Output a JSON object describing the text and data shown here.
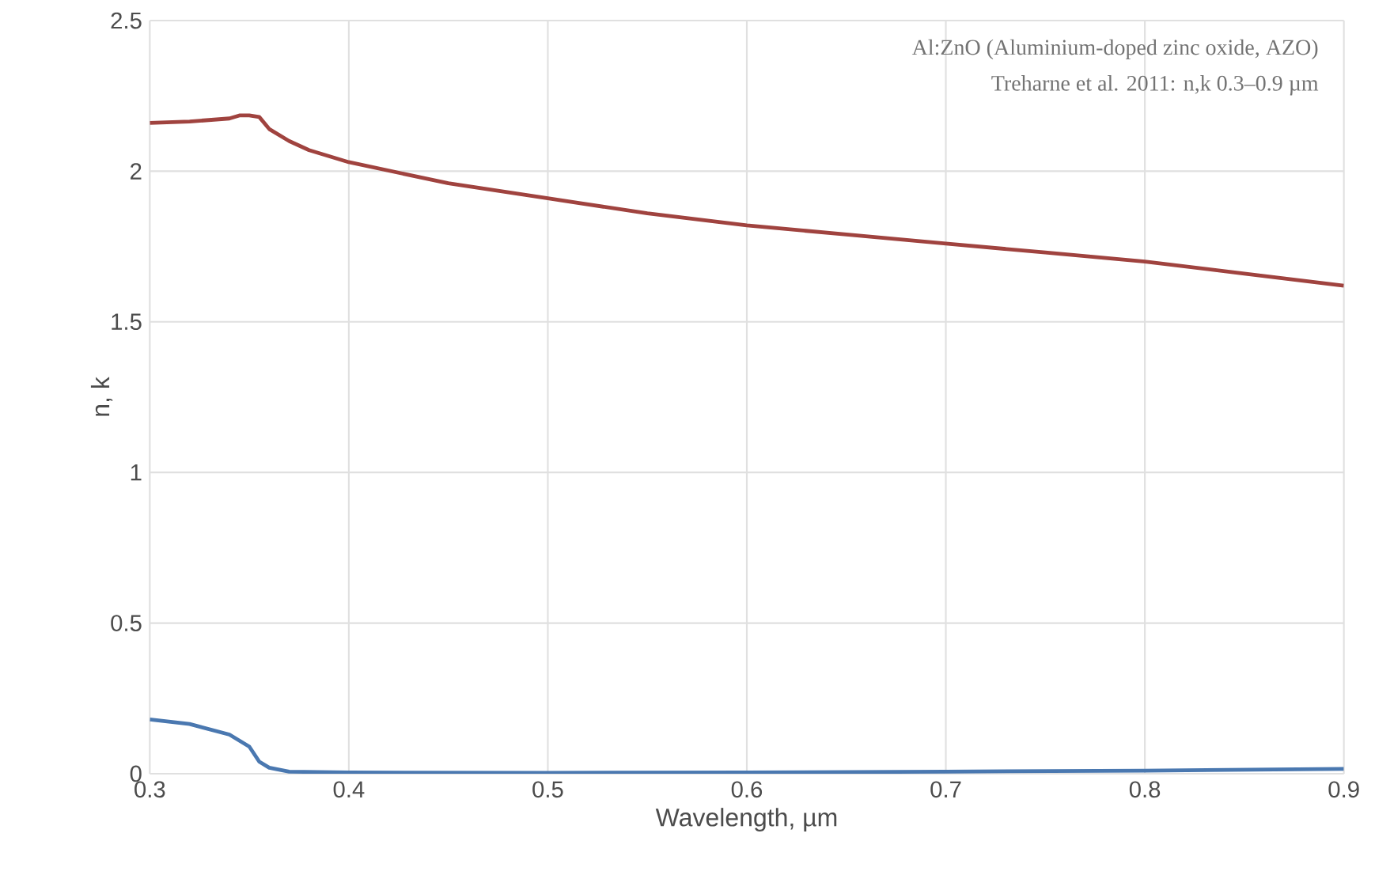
{
  "chart_data": {
    "type": "line",
    "xlabel": "Wavelength, µm",
    "ylabel": "n, k",
    "annotations": [
      "Al:ZnO (Aluminium-doped zinc oxide, AZO)",
      "Treharne et al. 2011: n,k 0.3–0.9 µm"
    ],
    "series": [
      {
        "color": "#a0433f",
        "x": [
          0.3,
          0.32,
          0.34,
          0.345,
          0.35,
          0.355,
          0.36,
          0.37,
          0.38,
          0.4,
          0.45,
          0.5,
          0.55,
          0.6,
          0.65,
          0.7,
          0.75,
          0.8,
          0.85,
          0.9
        ],
        "values": [
          2.16,
          2.165,
          2.175,
          2.185,
          2.185,
          2.18,
          2.14,
          2.1,
          2.07,
          2.03,
          1.96,
          1.91,
          1.86,
          1.82,
          1.79,
          1.76,
          1.73,
          1.7,
          1.66,
          1.62
        ]
      },
      {
        "color": "#4a78b0",
        "x": [
          0.3,
          0.32,
          0.34,
          0.35,
          0.355,
          0.36,
          0.37,
          0.4,
          0.5,
          0.6,
          0.7,
          0.8,
          0.9
        ],
        "values": [
          0.18,
          0.165,
          0.13,
          0.09,
          0.04,
          0.02,
          0.007,
          0.004,
          0.003,
          0.004,
          0.007,
          0.01,
          0.016
        ]
      }
    ],
    "xlim": [
      0.3,
      0.9
    ],
    "ylim": [
      0,
      2.5
    ],
    "xticks": [
      0.3,
      0.4,
      0.5,
      0.6,
      0.7,
      0.8,
      0.9
    ],
    "yticks": [
      0,
      0.5,
      1,
      1.5,
      2,
      2.5
    ],
    "grid": true,
    "marker": "none",
    "line_style": "solid"
  }
}
